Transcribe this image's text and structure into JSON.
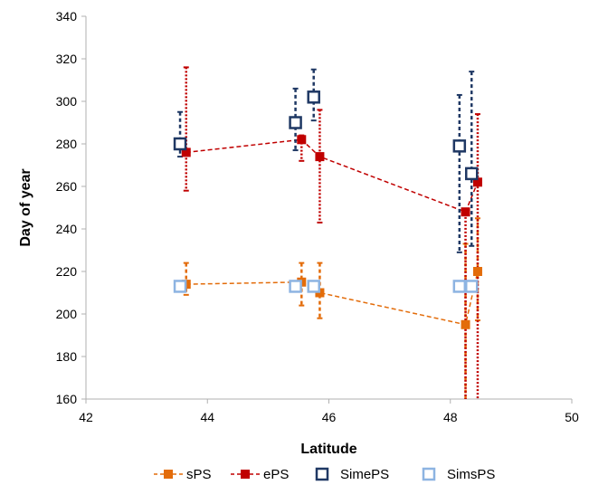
{
  "chart_data": {
    "type": "scatter",
    "title": "",
    "xlabel": "Latitude",
    "ylabel": "Day of year",
    "xlim": [
      42,
      50
    ],
    "ylim": [
      160,
      340
    ],
    "xticks": [
      "42",
      "44",
      "46",
      "48",
      "50"
    ],
    "yticks": [
      "160",
      "180",
      "200",
      "220",
      "240",
      "260",
      "280",
      "300",
      "320",
      "340"
    ],
    "grid": false,
    "legend_position": "bottom",
    "series": [
      {
        "name": "sPS",
        "color": "#E36C0A",
        "marker": "filled-square",
        "line": "dashed",
        "errorbar_style": "dashed",
        "points": [
          {
            "x": 43.65,
            "y": 214,
            "err_low": 209,
            "err_high": 224
          },
          {
            "x": 45.55,
            "y": 215,
            "err_low": 204,
            "err_high": 224
          },
          {
            "x": 45.85,
            "y": 210,
            "err_low": 198,
            "err_high": 224
          },
          {
            "x": 48.25,
            "y": 195,
            "err_low": 160,
            "err_high": 233
          },
          {
            "x": 48.45,
            "y": 220,
            "err_low": 197,
            "err_high": 245
          }
        ]
      },
      {
        "name": "ePS",
        "color": "#C00000",
        "marker": "filled-square",
        "line": "dashed",
        "errorbar_style": "dotted",
        "points": [
          {
            "x": 43.65,
            "y": 276,
            "err_low": 258,
            "err_high": 316
          },
          {
            "x": 45.55,
            "y": 282,
            "err_low": 272,
            "err_high": 284
          },
          {
            "x": 45.85,
            "y": 274,
            "err_low": 243,
            "err_high": 296
          },
          {
            "x": 48.25,
            "y": 248,
            "err_low": 160,
            "err_high": 249
          },
          {
            "x": 48.45,
            "y": 262,
            "err_low": 160,
            "err_high": 294
          }
        ]
      },
      {
        "name": "SimePS",
        "color": "#1F3864",
        "marker": "open-square",
        "line": "none",
        "errorbar_style": "dashed",
        "points": [
          {
            "x": 43.55,
            "y": 280,
            "err_low": 274,
            "err_high": 295
          },
          {
            "x": 45.45,
            "y": 290,
            "err_low": 277,
            "err_high": 306
          },
          {
            "x": 45.75,
            "y": 302,
            "err_low": 291,
            "err_high": 315
          },
          {
            "x": 48.15,
            "y": 279,
            "err_low": 229,
            "err_high": 303
          },
          {
            "x": 48.35,
            "y": 266,
            "err_low": 232,
            "err_high": 314
          }
        ]
      },
      {
        "name": "SimsPS",
        "color": "#8DB4E2",
        "marker": "open-square",
        "line": "none",
        "errorbar_style": "none",
        "points": [
          {
            "x": 43.55,
            "y": 213
          },
          {
            "x": 45.45,
            "y": 213
          },
          {
            "x": 45.75,
            "y": 213
          },
          {
            "x": 48.15,
            "y": 213
          },
          {
            "x": 48.35,
            "y": 213
          }
        ]
      }
    ]
  }
}
